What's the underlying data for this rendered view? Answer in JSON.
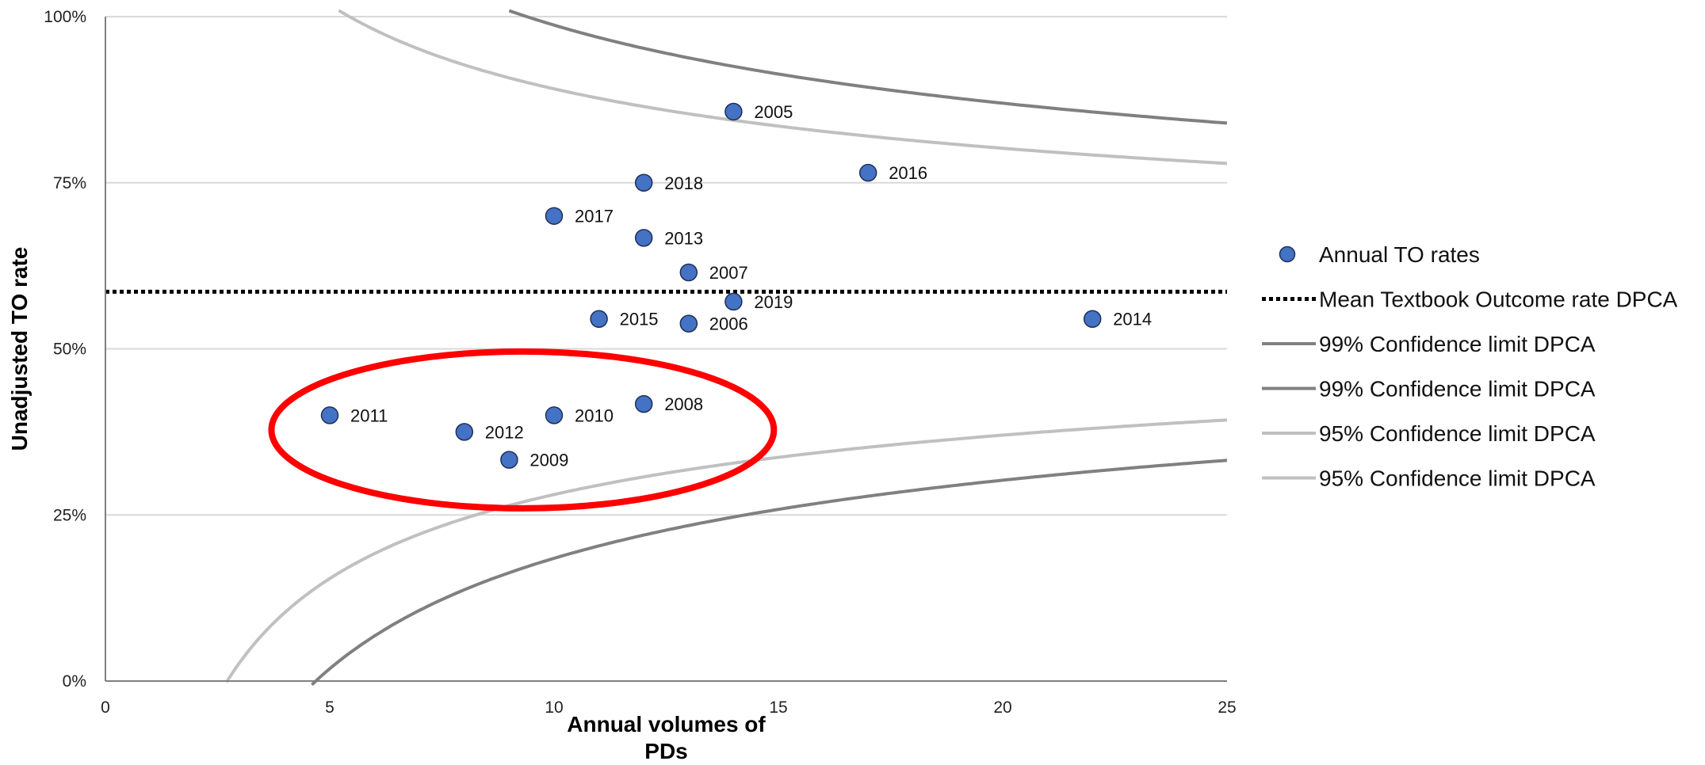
{
  "chart_data": {
    "type": "scatter",
    "xlabel": "Annual volumes of PDs",
    "ylabel": "Unadjusted TO rate",
    "xlim": [
      0,
      25
    ],
    "ylim": [
      0,
      100
    ],
    "x_ticks": [
      "0",
      "5",
      "10",
      "15",
      "20",
      "25"
    ],
    "y_ticks": [
      "0%",
      "25%",
      "50%",
      "75%",
      "100%"
    ],
    "grid": "horizontal",
    "legend_position": "right",
    "points": {
      "name": "Annual TO rates",
      "color": "#4472c4",
      "data": [
        {
          "x": 14,
          "y": 85.7,
          "label": "2005"
        },
        {
          "x": 13,
          "y": 53.8,
          "label": "2006"
        },
        {
          "x": 13,
          "y": 61.5,
          "label": "2007"
        },
        {
          "x": 12,
          "y": 41.7,
          "label": "2008"
        },
        {
          "x": 9,
          "y": 33.3,
          "label": "2009"
        },
        {
          "x": 10,
          "y": 40.0,
          "label": "2010"
        },
        {
          "x": 5,
          "y": 40.0,
          "label": "2011"
        },
        {
          "x": 8,
          "y": 37.5,
          "label": "2012"
        },
        {
          "x": 12,
          "y": 66.7,
          "label": "2013"
        },
        {
          "x": 22,
          "y": 54.5,
          "label": "2014"
        },
        {
          "x": 11,
          "y": 54.5,
          "label": "2015"
        },
        {
          "x": 17,
          "y": 76.5,
          "label": "2016"
        },
        {
          "x": 10,
          "y": 70.0,
          "label": "2017"
        },
        {
          "x": 12,
          "y": 75.0,
          "label": "2018"
        },
        {
          "x": 14,
          "y": 57.1,
          "label": "2019"
        }
      ]
    },
    "mean_line": {
      "name": "Mean Textbook Outcome rate DPCA",
      "y": 58.6,
      "color": "#000000"
    },
    "limits": [
      {
        "name": "99% Confidence limit DPCA",
        "side": "upper",
        "z": 2.576,
        "color": "#808080"
      },
      {
        "name": "99% Confidence limit DPCA",
        "side": "lower",
        "z": 2.576,
        "color": "#808080"
      },
      {
        "name": "95% Confidence limit DPCA",
        "side": "upper",
        "z": 1.96,
        "color": "#c0c0c0"
      },
      {
        "name": "95% Confidence limit DPCA",
        "side": "lower",
        "z": 1.96,
        "color": "#c0c0c0"
      }
    ],
    "highlight_ellipse": {
      "color": "#ff0000",
      "cx": 9.3,
      "cy": 37.8,
      "rx": 5.6,
      "ry": 11.8
    }
  }
}
